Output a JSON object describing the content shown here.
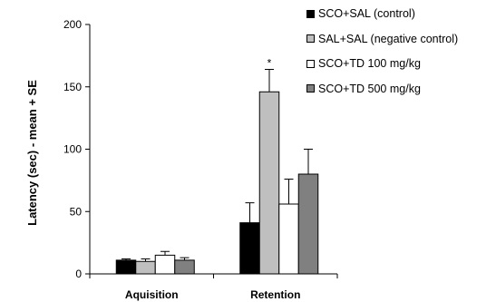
{
  "chart_data": {
    "type": "bar",
    "categories": [
      "Aquisition",
      "Retention"
    ],
    "ylabel": "Latency (sec) - mean + SE",
    "xlabel": "",
    "ylim": [
      0,
      200
    ],
    "yticks": [
      0,
      50,
      100,
      150,
      200
    ],
    "grid": false,
    "legend_position": "top-right",
    "series": [
      {
        "name": "SCO+SAL (control)",
        "color": "#000000",
        "values": [
          11,
          41
        ],
        "errors": [
          1,
          16
        ]
      },
      {
        "name": "SAL+SAL (negative control)",
        "color": "#bfbfbf",
        "values": [
          10,
          146
        ],
        "errors": [
          2,
          18
        ]
      },
      {
        "name": "SCO+TD 100 mg/kg",
        "color": "#ffffff",
        "values": [
          15,
          56
        ],
        "errors": [
          3,
          20
        ]
      },
      {
        "name": "SCO+TD 500 mg/kg",
        "color": "#808080",
        "values": [
          11,
          80
        ],
        "errors": [
          2,
          20
        ]
      }
    ],
    "annotations": [
      {
        "text": "*",
        "category": "Retention",
        "series": 1
      }
    ]
  }
}
